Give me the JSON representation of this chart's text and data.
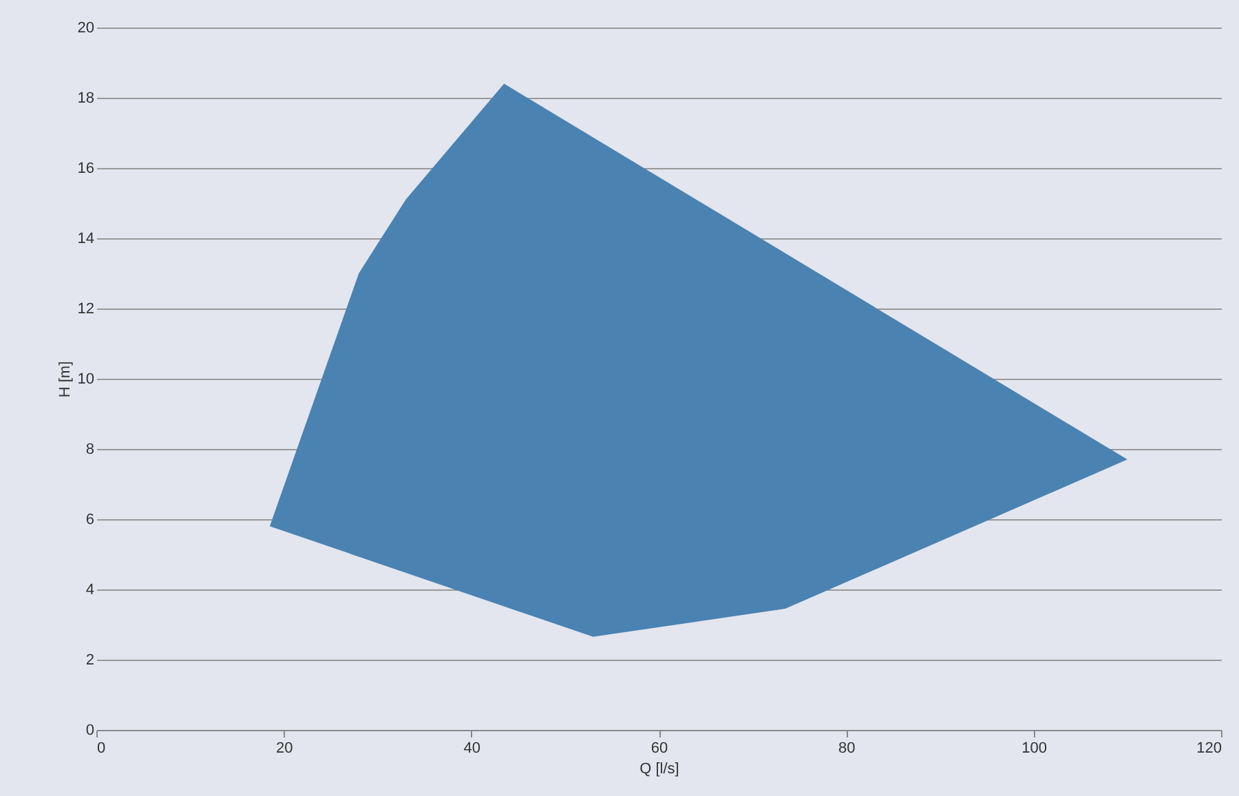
{
  "chart_data": {
    "type": "area",
    "xlabel": "Q [l/s]",
    "ylabel": "H [m]",
    "x": [
      18.5,
      28,
      33,
      43.5,
      110,
      73.5,
      53,
      18.5
    ],
    "series": [
      {
        "color": "#4a82b2",
        "values": [
          5.8,
          13,
          15.1,
          18.4,
          7.7,
          3.45,
          2.65,
          5.8
        ]
      }
    ],
    "xlim": [
      0,
      120
    ],
    "xticks": [
      0,
      20,
      40,
      60,
      80,
      100,
      120
    ],
    "ylim": [
      0,
      20
    ],
    "yticks": [
      0,
      2,
      4,
      6,
      8,
      10,
      12,
      14,
      16,
      18,
      20
    ],
    "grid": "y"
  }
}
